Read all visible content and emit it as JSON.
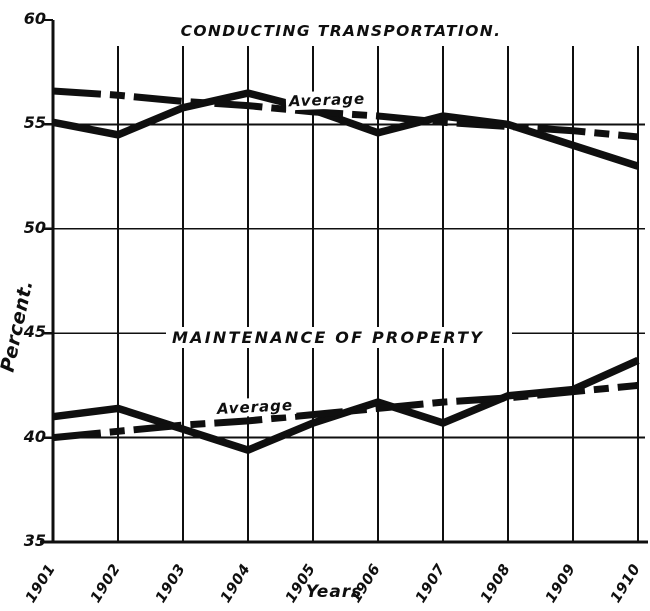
{
  "page": {
    "background": "#ffffff",
    "ink": "#0f0f0f"
  },
  "chart_data": {
    "type": "line",
    "xlabel": "Years",
    "ylabel": "Percent.",
    "x": [
      1901,
      1902,
      1903,
      1904,
      1905,
      1906,
      1907,
      1908,
      1909,
      1910
    ],
    "x_tick_labels": [
      "1901",
      "1902",
      "1903",
      "1904",
      "1905",
      "1906",
      "1907",
      "1908",
      "1909",
      "1910"
    ],
    "y_ticks": [
      60,
      55,
      50,
      45,
      40,
      35
    ],
    "y_tick_labels": [
      "60",
      "55",
      "50",
      "45",
      "40",
      "35"
    ],
    "ylim": [
      35,
      60
    ],
    "grid": true,
    "legend": "inline-labels",
    "panels": [
      {
        "title": "CONDUCTING TRANSPORTATION.",
        "average_label": "Average",
        "series": [
          {
            "name": "conducting-transportation-annual",
            "style": "solid",
            "values": [
              55.1,
              54.5,
              55.8,
              56.5,
              55.7,
              54.6,
              55.4,
              55.0,
              54.0,
              53.0
            ]
          },
          {
            "name": "conducting-transportation-average",
            "style": "dashed",
            "values": [
              56.6,
              56.4,
              56.1,
              55.9,
              55.6,
              55.4,
              55.1,
              54.9,
              54.7,
              54.4
            ]
          }
        ]
      },
      {
        "title": "MAINTENANCE OF PROPERTY",
        "average_label": "Average",
        "series": [
          {
            "name": "maintenance-of-property-annual",
            "style": "solid",
            "values": [
              41.0,
              41.4,
              40.4,
              39.4,
              40.7,
              41.7,
              40.7,
              42.0,
              42.3,
              43.7
            ]
          },
          {
            "name": "maintenance-of-property-average",
            "style": "dashed",
            "values": [
              40.0,
              40.3,
              40.6,
              40.8,
              41.1,
              41.4,
              41.7,
              41.9,
              42.2,
              42.5
            ]
          }
        ]
      }
    ]
  }
}
